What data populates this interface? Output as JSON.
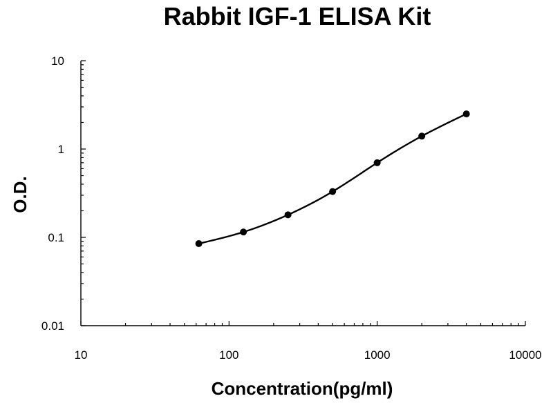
{
  "chart_data": {
    "type": "scatter",
    "title": "Rabbit IGF-1 ELISA Kit",
    "xlabel": "Concentration(pg/ml)",
    "ylabel": "O.D.",
    "xscale": "log",
    "yscale": "log",
    "xlim": [
      10,
      10000
    ],
    "ylim": [
      0.01,
      10
    ],
    "x_ticks": [
      10,
      100,
      1000,
      10000
    ],
    "x_tick_labels": [
      "10",
      "100",
      "1000",
      "10000"
    ],
    "y_ticks": [
      0.01,
      0.1,
      1,
      10
    ],
    "y_tick_labels": [
      "0.01",
      "0.1",
      "1",
      "10"
    ],
    "grid": false,
    "legend": "none",
    "series": [
      {
        "x": [
          62.5,
          125,
          250,
          500,
          1000,
          2000,
          4000
        ],
        "y": [
          0.085,
          0.115,
          0.18,
          0.33,
          0.7,
          1.4,
          2.5
        ],
        "marker": "circle",
        "line": "smooth"
      }
    ]
  }
}
